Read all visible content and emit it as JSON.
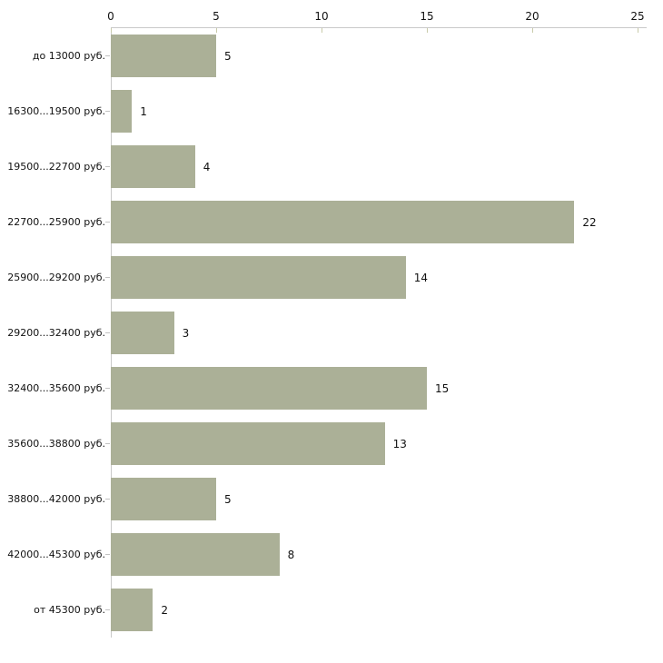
{
  "chart_data": {
    "type": "bar",
    "orientation": "horizontal",
    "title": "",
    "categories": [
      "до 13000 руб.",
      "16300...19500 руб.",
      "19500...22700 руб.",
      "22700...25900 руб.",
      "25900...29200 руб.",
      "29200...32400 руб.",
      "32400...35600 руб.",
      "35600...38800 руб.",
      "38800...42000 руб.",
      "42000...45300 руб.",
      "от 45300 руб."
    ],
    "values": [
      5,
      1,
      4,
      22,
      14,
      3,
      15,
      13,
      5,
      8,
      2
    ],
    "xlim": [
      0,
      25
    ],
    "x_ticks": [
      0,
      5,
      10,
      15,
      20,
      25
    ],
    "grid": false,
    "legend": false,
    "data_labels": true,
    "colors": {
      "bar_fill": "#abb097",
      "axis_line": "#c9c9c9",
      "x_tick_mark": "#c9cbaa",
      "y_tick_mark": "#c2c2c2",
      "text": "#111111",
      "background": "#ffffff"
    }
  }
}
